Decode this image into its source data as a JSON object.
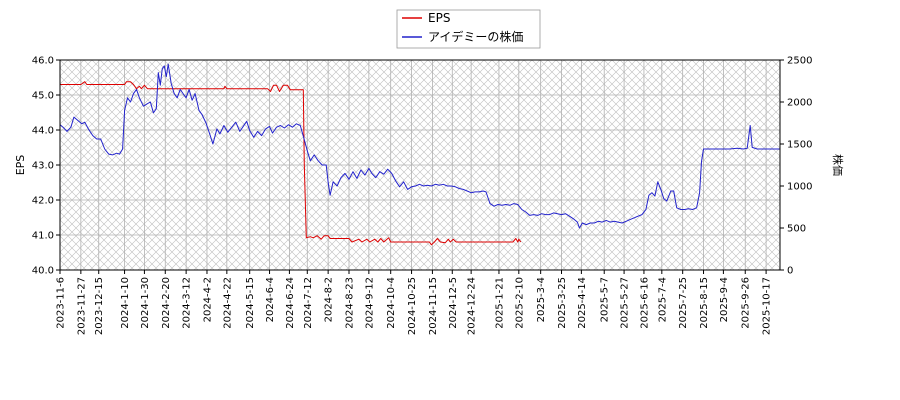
{
  "chart_data": {
    "type": "line",
    "title": "",
    "xlabel": "",
    "ylabel_left": "EPS",
    "ylabel_right": "株価",
    "grid": true,
    "legend_placement": "top-center",
    "hatch_background": true,
    "x_range": [
      "2023-11-06",
      "2025-10-31"
    ],
    "ylim_left": [
      40.0,
      46.0
    ],
    "ylim_right": [
      0,
      2500
    ],
    "yticks_left": [
      "40.0",
      "41.0",
      "42.0",
      "43.0",
      "44.0",
      "45.0",
      "46.0"
    ],
    "yticks_right": [
      "0",
      "500",
      "1000",
      "1500",
      "2000",
      "2500"
    ],
    "xticks": [
      "2023-11-6",
      "2023-11-27",
      "2023-12-15",
      "2024-1-10",
      "2024-1-30",
      "2024-2-20",
      "2024-3-12",
      "2024-4-2",
      "2024-4-22",
      "2024-5-15",
      "2024-6-4",
      "2024-6-24",
      "2024-7-12",
      "2024-8-2",
      "2024-8-23",
      "2024-9-12",
      "2024-10-4",
      "2024-10-25",
      "2024-11-15",
      "2024-12-5",
      "2024-12-24",
      "2025-1-21",
      "2025-2-10",
      "2025-3-4",
      "2025-3-25",
      "2025-4-14",
      "2025-5-7",
      "2025-5-27",
      "2025-6-16",
      "2025-7-4",
      "2025-7-25",
      "2025-8-15",
      "2025-9-4",
      "2025-9-26",
      "2025-10-17"
    ],
    "series": [
      {
        "name": "EPS",
        "axis": "left",
        "color": "#dd0000",
        "points": [
          [
            "2023-11-06",
            45.3
          ],
          [
            "2023-11-27",
            45.3
          ],
          [
            "2023-12-01",
            45.38
          ],
          [
            "2023-12-03",
            45.3
          ],
          [
            "2024-01-10",
            45.3
          ],
          [
            "2024-01-12",
            45.38
          ],
          [
            "2024-01-16",
            45.38
          ],
          [
            "2024-01-19",
            45.3
          ],
          [
            "2024-01-22",
            45.18
          ],
          [
            "2024-01-25",
            45.25
          ],
          [
            "2024-01-27",
            45.18
          ],
          [
            "2024-01-30",
            45.28
          ],
          [
            "2024-02-02",
            45.18
          ],
          [
            "2024-04-19",
            45.18
          ],
          [
            "2024-04-20",
            45.25
          ],
          [
            "2024-04-22",
            45.18
          ],
          [
            "2024-06-02",
            45.18
          ],
          [
            "2024-06-05",
            45.1
          ],
          [
            "2024-06-08",
            45.28
          ],
          [
            "2024-06-11",
            45.28
          ],
          [
            "2024-06-14",
            45.1
          ],
          [
            "2024-06-18",
            45.28
          ],
          [
            "2024-06-22",
            45.28
          ],
          [
            "2024-06-25",
            45.15
          ],
          [
            "2024-07-08",
            45.15
          ],
          [
            "2024-07-09",
            43.0
          ],
          [
            "2024-07-11",
            40.92
          ],
          [
            "2024-07-15",
            40.95
          ],
          [
            "2024-07-18",
            40.92
          ],
          [
            "2024-07-22",
            40.98
          ],
          [
            "2024-07-26",
            40.88
          ],
          [
            "2024-07-29",
            40.98
          ],
          [
            "2024-08-02",
            40.98
          ],
          [
            "2024-08-04",
            40.9
          ],
          [
            "2024-08-23",
            40.9
          ],
          [
            "2024-08-26",
            40.8
          ],
          [
            "2024-09-02",
            40.88
          ],
          [
            "2024-09-05",
            40.8
          ],
          [
            "2024-09-10",
            40.88
          ],
          [
            "2024-09-13",
            40.8
          ],
          [
            "2024-09-18",
            40.88
          ],
          [
            "2024-09-21",
            40.8
          ],
          [
            "2024-09-24",
            40.9
          ],
          [
            "2024-09-27",
            40.8
          ],
          [
            "2024-10-02",
            40.92
          ],
          [
            "2024-10-04",
            40.8
          ],
          [
            "2024-11-12",
            40.8
          ],
          [
            "2024-11-14",
            40.72
          ],
          [
            "2024-11-17",
            40.8
          ],
          [
            "2024-11-20",
            40.9
          ],
          [
            "2024-11-23",
            40.8
          ],
          [
            "2024-11-28",
            40.78
          ],
          [
            "2024-12-01",
            40.88
          ],
          [
            "2024-12-03",
            40.8
          ],
          [
            "2024-12-06",
            40.88
          ],
          [
            "2024-12-09",
            40.8
          ],
          [
            "2025-02-04",
            40.8
          ],
          [
            "2025-02-07",
            40.9
          ],
          [
            "2025-02-09",
            40.8
          ],
          [
            "2025-02-10",
            40.88
          ],
          [
            "2025-02-12",
            40.8
          ]
        ]
      },
      {
        "name": "アイデミーの株価",
        "axis": "right",
        "color": "#2222cc",
        "points": [
          [
            "2023-11-06",
            1730
          ],
          [
            "2023-11-09",
            1700
          ],
          [
            "2023-11-13",
            1650
          ],
          [
            "2023-11-17",
            1700
          ],
          [
            "2023-11-20",
            1820
          ],
          [
            "2023-11-24",
            1780
          ],
          [
            "2023-11-28",
            1740
          ],
          [
            "2023-12-01",
            1760
          ],
          [
            "2023-12-05",
            1670
          ],
          [
            "2023-12-09",
            1600
          ],
          [
            "2023-12-13",
            1560
          ],
          [
            "2023-12-17",
            1560
          ],
          [
            "2023-12-21",
            1440
          ],
          [
            "2023-12-25",
            1380
          ],
          [
            "2023-12-29",
            1370
          ],
          [
            "2024-01-02",
            1390
          ],
          [
            "2024-01-05",
            1380
          ],
          [
            "2024-01-08",
            1440
          ],
          [
            "2024-01-10",
            1900
          ],
          [
            "2024-01-13",
            2050
          ],
          [
            "2024-01-16",
            2000
          ],
          [
            "2024-01-19",
            2100
          ],
          [
            "2024-01-22",
            2150
          ],
          [
            "2024-01-25",
            2050
          ],
          [
            "2024-01-29",
            1950
          ],
          [
            "2024-02-02",
            1980
          ],
          [
            "2024-02-05",
            2000
          ],
          [
            "2024-02-08",
            1870
          ],
          [
            "2024-02-11",
            1920
          ],
          [
            "2024-02-13",
            2350
          ],
          [
            "2024-02-15",
            2200
          ],
          [
            "2024-02-17",
            2400
          ],
          [
            "2024-02-19",
            2430
          ],
          [
            "2024-02-21",
            2300
          ],
          [
            "2024-02-23",
            2450
          ],
          [
            "2024-02-26",
            2220
          ],
          [
            "2024-02-29",
            2100
          ],
          [
            "2024-03-03",
            2050
          ],
          [
            "2024-03-06",
            2150
          ],
          [
            "2024-03-09",
            2100
          ],
          [
            "2024-03-12",
            2050
          ],
          [
            "2024-03-15",
            2150
          ],
          [
            "2024-03-18",
            2020
          ],
          [
            "2024-03-21",
            2100
          ],
          [
            "2024-03-25",
            1900
          ],
          [
            "2024-03-28",
            1850
          ],
          [
            "2024-04-01",
            1750
          ],
          [
            "2024-04-05",
            1610
          ],
          [
            "2024-04-08",
            1500
          ],
          [
            "2024-04-12",
            1680
          ],
          [
            "2024-04-15",
            1620
          ],
          [
            "2024-04-19",
            1720
          ],
          [
            "2024-04-23",
            1640
          ],
          [
            "2024-04-27",
            1700
          ],
          [
            "2024-05-01",
            1760
          ],
          [
            "2024-05-05",
            1650
          ],
          [
            "2024-05-08",
            1700
          ],
          [
            "2024-05-12",
            1770
          ],
          [
            "2024-05-15",
            1660
          ],
          [
            "2024-05-19",
            1580
          ],
          [
            "2024-05-23",
            1650
          ],
          [
            "2024-05-27",
            1600
          ],
          [
            "2024-05-31",
            1680
          ],
          [
            "2024-06-04",
            1710
          ],
          [
            "2024-06-07",
            1630
          ],
          [
            "2024-06-11",
            1700
          ],
          [
            "2024-06-15",
            1720
          ],
          [
            "2024-06-19",
            1690
          ],
          [
            "2024-06-23",
            1730
          ],
          [
            "2024-06-27",
            1700
          ],
          [
            "2024-07-01",
            1740
          ],
          [
            "2024-07-05",
            1720
          ],
          [
            "2024-07-09",
            1550
          ],
          [
            "2024-07-12",
            1420
          ],
          [
            "2024-07-15",
            1300
          ],
          [
            "2024-07-19",
            1370
          ],
          [
            "2024-07-23",
            1300
          ],
          [
            "2024-07-27",
            1250
          ],
          [
            "2024-07-31",
            1250
          ],
          [
            "2024-08-02",
            1050
          ],
          [
            "2024-08-04",
            890
          ],
          [
            "2024-08-07",
            1050
          ],
          [
            "2024-08-11",
            1000
          ],
          [
            "2024-08-15",
            1100
          ],
          [
            "2024-08-19",
            1150
          ],
          [
            "2024-08-23",
            1080
          ],
          [
            "2024-08-27",
            1170
          ],
          [
            "2024-08-31",
            1090
          ],
          [
            "2024-09-04",
            1190
          ],
          [
            "2024-09-08",
            1130
          ],
          [
            "2024-09-12",
            1210
          ],
          [
            "2024-09-15",
            1150
          ],
          [
            "2024-09-19",
            1100
          ],
          [
            "2024-09-23",
            1170
          ],
          [
            "2024-09-27",
            1140
          ],
          [
            "2024-10-01",
            1200
          ],
          [
            "2024-10-05",
            1150
          ],
          [
            "2024-10-09",
            1060
          ],
          [
            "2024-10-13",
            990
          ],
          [
            "2024-10-17",
            1050
          ],
          [
            "2024-10-21",
            960
          ],
          [
            "2024-10-25",
            990
          ],
          [
            "2024-10-29",
            1000
          ],
          [
            "2024-11-02",
            1020
          ],
          [
            "2024-11-06",
            1000
          ],
          [
            "2024-11-10",
            1010
          ],
          [
            "2024-11-14",
            1000
          ],
          [
            "2024-11-18",
            1020
          ],
          [
            "2024-11-22",
            1010
          ],
          [
            "2024-11-26",
            1020
          ],
          [
            "2024-11-30",
            1000
          ],
          [
            "2024-12-04",
            1000
          ],
          [
            "2024-12-08",
            990
          ],
          [
            "2024-12-12",
            970
          ],
          [
            "2024-12-16",
            960
          ],
          [
            "2024-12-20",
            940
          ],
          [
            "2024-12-24",
            920
          ],
          [
            "2024-12-28",
            930
          ],
          [
            "2025-01-01",
            930
          ],
          [
            "2025-01-05",
            940
          ],
          [
            "2025-01-08",
            930
          ],
          [
            "2025-01-12",
            790
          ],
          [
            "2025-01-16",
            760
          ],
          [
            "2025-01-20",
            780
          ],
          [
            "2025-01-24",
            770
          ],
          [
            "2025-01-28",
            780
          ],
          [
            "2025-02-01",
            770
          ],
          [
            "2025-02-05",
            790
          ],
          [
            "2025-02-09",
            780
          ],
          [
            "2025-02-13",
            720
          ],
          [
            "2025-02-17",
            690
          ],
          [
            "2025-02-21",
            650
          ],
          [
            "2025-02-25",
            660
          ],
          [
            "2025-03-01",
            650
          ],
          [
            "2025-03-05",
            670
          ],
          [
            "2025-03-09",
            660
          ],
          [
            "2025-03-13",
            660
          ],
          [
            "2025-03-17",
            680
          ],
          [
            "2025-03-21",
            670
          ],
          [
            "2025-03-25",
            660
          ],
          [
            "2025-03-29",
            670
          ],
          [
            "2025-04-02",
            640
          ],
          [
            "2025-04-06",
            610
          ],
          [
            "2025-04-10",
            570
          ],
          [
            "2025-04-12",
            500
          ],
          [
            "2025-04-15",
            560
          ],
          [
            "2025-04-19",
            540
          ],
          [
            "2025-04-23",
            560
          ],
          [
            "2025-04-27",
            560
          ],
          [
            "2025-05-01",
            580
          ],
          [
            "2025-05-05",
            570
          ],
          [
            "2025-05-09",
            590
          ],
          [
            "2025-05-13",
            570
          ],
          [
            "2025-05-17",
            580
          ],
          [
            "2025-05-21",
            570
          ],
          [
            "2025-05-25",
            560
          ],
          [
            "2025-05-29",
            580
          ],
          [
            "2025-06-02",
            600
          ],
          [
            "2025-06-06",
            620
          ],
          [
            "2025-06-10",
            640
          ],
          [
            "2025-06-14",
            660
          ],
          [
            "2025-06-18",
            720
          ],
          [
            "2025-06-21",
            890
          ],
          [
            "2025-06-24",
            920
          ],
          [
            "2025-06-27",
            880
          ],
          [
            "2025-06-30",
            1050
          ],
          [
            "2025-07-03",
            960
          ],
          [
            "2025-07-06",
            850
          ],
          [
            "2025-07-09",
            820
          ],
          [
            "2025-07-13",
            940
          ],
          [
            "2025-07-16",
            940
          ],
          [
            "2025-07-19",
            740
          ],
          [
            "2025-07-23",
            720
          ],
          [
            "2025-07-27",
            720
          ],
          [
            "2025-07-31",
            730
          ],
          [
            "2025-08-04",
            720
          ],
          [
            "2025-08-08",
            740
          ],
          [
            "2025-08-11",
            920
          ],
          [
            "2025-08-13",
            1290
          ],
          [
            "2025-08-15",
            1440
          ],
          [
            "2025-08-22",
            1440
          ],
          [
            "2025-09-01",
            1440
          ],
          [
            "2025-09-10",
            1440
          ],
          [
            "2025-09-18",
            1450
          ],
          [
            "2025-09-24",
            1440
          ],
          [
            "2025-09-28",
            1450
          ],
          [
            "2025-10-01",
            1720
          ],
          [
            "2025-10-03",
            1460
          ],
          [
            "2025-10-08",
            1440
          ],
          [
            "2025-10-20",
            1440
          ],
          [
            "2025-10-31",
            1440
          ]
        ]
      }
    ]
  }
}
